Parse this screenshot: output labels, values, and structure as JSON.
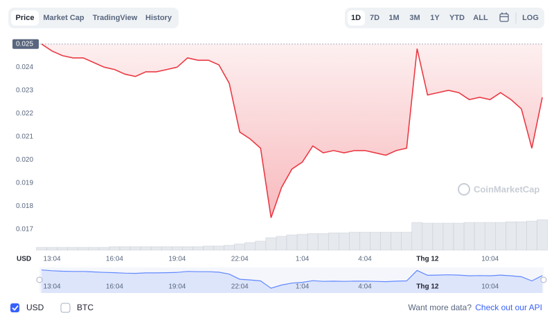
{
  "ui": {
    "tabs": [
      "Price",
      "Market Cap",
      "TradingView",
      "History"
    ],
    "ranges": [
      "1D",
      "7D",
      "1M",
      "3M",
      "1Y",
      "YTD",
      "ALL"
    ],
    "log": "LOG",
    "currency": "USD",
    "watermark": "CoinMarketCap",
    "toggles": [
      "USD",
      "BTC"
    ],
    "more": "Want more data?",
    "api": "Check out our API"
  },
  "chart_data": {
    "type": "line",
    "categories": [
      null,
      "13:04",
      null,
      null,
      null,
      null,
      null,
      "16:04",
      null,
      null,
      null,
      null,
      null,
      "19:04",
      null,
      null,
      null,
      null,
      null,
      "22:04",
      null,
      null,
      null,
      null,
      null,
      "1:04",
      null,
      null,
      null,
      null,
      null,
      "4:04",
      null,
      null,
      null,
      null,
      null,
      "Thg 12",
      null,
      null,
      null,
      null,
      null,
      "10:04",
      null,
      null,
      null,
      null,
      null
    ],
    "series": [
      {
        "name": "USD",
        "color": "#ea3943",
        "values": [
          0.025,
          0.0247,
          0.0245,
          0.0244,
          0.0244,
          0.0242,
          0.024,
          0.0239,
          0.0237,
          0.0236,
          0.0238,
          0.0238,
          0.0239,
          0.024,
          0.0244,
          0.0243,
          0.0243,
          0.0241,
          0.0233,
          0.0212,
          0.0209,
          0.0205,
          0.0175,
          0.0188,
          0.0196,
          0.0199,
          0.0206,
          0.0203,
          0.0204,
          0.0203,
          0.0204,
          0.0204,
          0.0203,
          0.0202,
          0.0204,
          0.0205,
          0.0248,
          0.0228,
          0.0229,
          0.023,
          0.0229,
          0.0226,
          0.0227,
          0.0226,
          0.0229,
          0.0226,
          0.0222,
          0.0205,
          0.0227
        ]
      }
    ],
    "volume": {
      "values": [
        4,
        4,
        4,
        4,
        4,
        4,
        4,
        5,
        5,
        5,
        5,
        5,
        5,
        5,
        5,
        5,
        6,
        6,
        7,
        9,
        11,
        13,
        18,
        20,
        22,
        23,
        24,
        24,
        25,
        25,
        26,
        26,
        26,
        26,
        26,
        26,
        40,
        39,
        39,
        39,
        39,
        40,
        40,
        40,
        40,
        41,
        41,
        42,
        44
      ],
      "ylim": [
        0,
        50
      ]
    },
    "ylim": [
      0.0161,
      0.0252
    ],
    "yticks": [
      0.017,
      0.018,
      0.019,
      {
        "value": 0.02,
        "label": "0.020"
      },
      0.021,
      0.022,
      0.023,
      0.024,
      0.025
    ],
    "grid": false
  }
}
